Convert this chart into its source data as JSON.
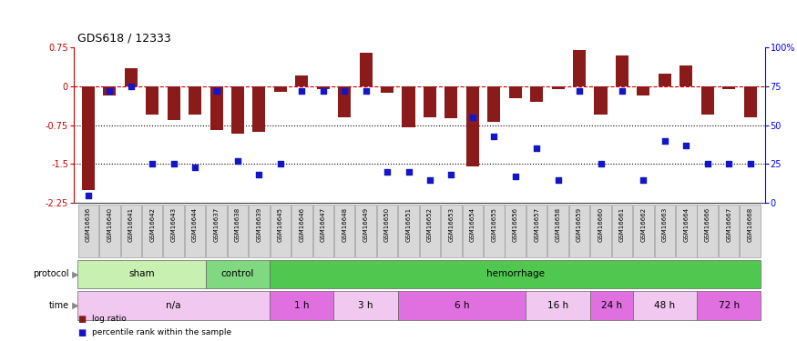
{
  "title": "GDS618 / 12333",
  "samples": [
    "GSM16636",
    "GSM16640",
    "GSM16641",
    "GSM16642",
    "GSM16643",
    "GSM16644",
    "GSM16637",
    "GSM16638",
    "GSM16639",
    "GSM16645",
    "GSM16646",
    "GSM16647",
    "GSM16648",
    "GSM16649",
    "GSM16650",
    "GSM16651",
    "GSM16652",
    "GSM16653",
    "GSM16654",
    "GSM16655",
    "GSM16656",
    "GSM16657",
    "GSM16658",
    "GSM16659",
    "GSM16660",
    "GSM16661",
    "GSM16662",
    "GSM16663",
    "GSM16664",
    "GSM16666",
    "GSM16667",
    "GSM16668"
  ],
  "log_ratio": [
    -2.0,
    -0.18,
    0.35,
    -0.55,
    -0.65,
    -0.55,
    -0.85,
    -0.92,
    -0.88,
    -0.1,
    0.22,
    -0.05,
    -0.6,
    0.65,
    -0.12,
    -0.78,
    -0.6,
    -0.62,
    -1.55,
    -0.68,
    -0.22,
    -0.3,
    -0.05,
    0.7,
    -0.55,
    0.6,
    -0.18,
    0.25,
    0.4,
    -0.55,
    -0.05,
    -0.6
  ],
  "percentile_rank": [
    5,
    72,
    75,
    25,
    25,
    23,
    72,
    27,
    18,
    25,
    72,
    72,
    72,
    72,
    20,
    20,
    15,
    18,
    55,
    43,
    17,
    35,
    15,
    72,
    25,
    72,
    15,
    40,
    37,
    25,
    25,
    25
  ],
  "ylim_left": [
    -2.25,
    0.75
  ],
  "ylim_right": [
    0,
    100
  ],
  "yticks_left": [
    0.75,
    0.0,
    -0.75,
    -1.5,
    -2.25
  ],
  "yticks_right": [
    100,
    75,
    50,
    25,
    0
  ],
  "hline_dotted": [
    -0.75,
    -1.5
  ],
  "bar_color": "#8B1A1A",
  "dot_color": "#1515c8",
  "protocol_groups": [
    {
      "label": "sham",
      "start": 0,
      "end": 5,
      "color": "#c8f0b0"
    },
    {
      "label": "control",
      "start": 6,
      "end": 8,
      "color": "#80d880"
    },
    {
      "label": "hemorrhage",
      "start": 9,
      "end": 31,
      "color": "#50c850"
    }
  ],
  "time_groups": [
    {
      "label": "n/a",
      "start": 0,
      "end": 8,
      "color": "#f0c8f0"
    },
    {
      "label": "1 h",
      "start": 9,
      "end": 11,
      "color": "#e070e0"
    },
    {
      "label": "3 h",
      "start": 12,
      "end": 14,
      "color": "#f0c8f0"
    },
    {
      "label": "6 h",
      "start": 15,
      "end": 20,
      "color": "#e070e0"
    },
    {
      "label": "16 h",
      "start": 21,
      "end": 23,
      "color": "#f0c8f0"
    },
    {
      "label": "24 h",
      "start": 24,
      "end": 25,
      "color": "#e070e0"
    },
    {
      "label": "48 h",
      "start": 26,
      "end": 28,
      "color": "#f0c8f0"
    },
    {
      "label": "72 h",
      "start": 29,
      "end": 31,
      "color": "#e070e0"
    }
  ],
  "bg_color": "#ffffff",
  "label_box_color": "#d8d8d8",
  "label_box_edge": "#888888"
}
